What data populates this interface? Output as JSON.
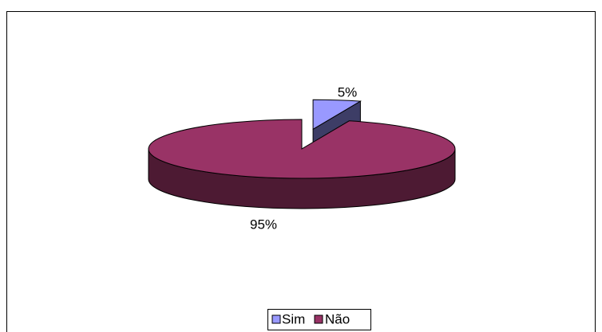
{
  "chart_data": {
    "type": "pie",
    "categories": [
      "Sim",
      "Não"
    ],
    "values": [
      5,
      95
    ],
    "value_labels": [
      "5%",
      "95%"
    ],
    "colors": [
      "#9999ff",
      "#993366"
    ],
    "legend": "bottom"
  }
}
